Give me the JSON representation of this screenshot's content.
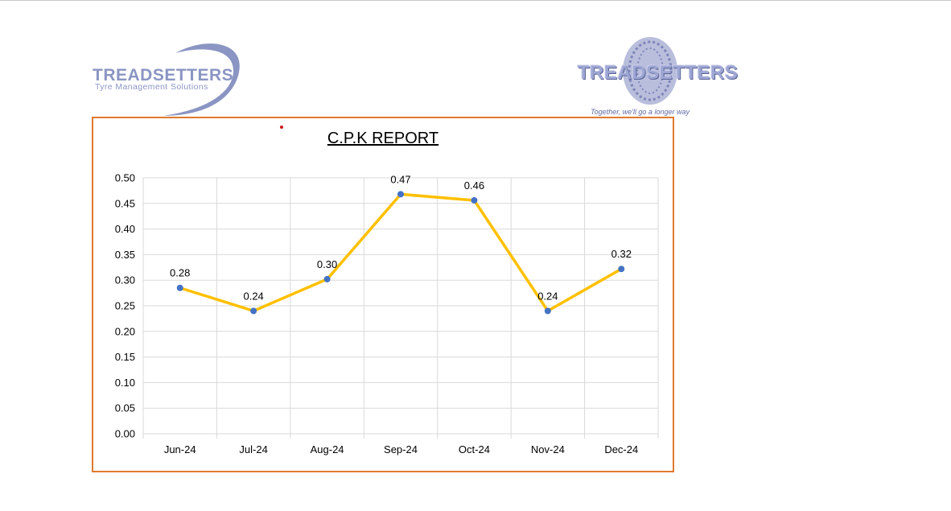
{
  "logos": {
    "left": {
      "title": "TREADSETTERS",
      "subtitle": "Tyre Management Solutions"
    },
    "right": {
      "title": "TREADSETTERS",
      "tagline": "Together, we'll go a longer way"
    }
  },
  "colors": {
    "line": "#ffc000",
    "marker": "#4472c4",
    "border": "#e07a2e",
    "grid": "#d9d9d9",
    "logo": "#8b95c3"
  },
  "chart_data": {
    "type": "line",
    "title": "C.P.K REPORT",
    "categories": [
      "Jun-24",
      "Jul-24",
      "Aug-24",
      "Sep-24",
      "Oct-24",
      "Nov-24",
      "Dec-24"
    ],
    "values": [
      0.285,
      0.24,
      0.302,
      0.468,
      0.456,
      0.24,
      0.322
    ],
    "data_labels": [
      "0.28",
      "0.24",
      "0.30",
      "0.47",
      "0.46",
      "0.24",
      "0.32"
    ],
    "yticks": [
      "0.00",
      "0.05",
      "0.10",
      "0.15",
      "0.20",
      "0.25",
      "0.30",
      "0.35",
      "0.40",
      "0.45",
      "0.50"
    ],
    "ylim": [
      0,
      0.5
    ],
    "xlabel": "",
    "ylabel": "",
    "grid": true,
    "legend": "none"
  }
}
